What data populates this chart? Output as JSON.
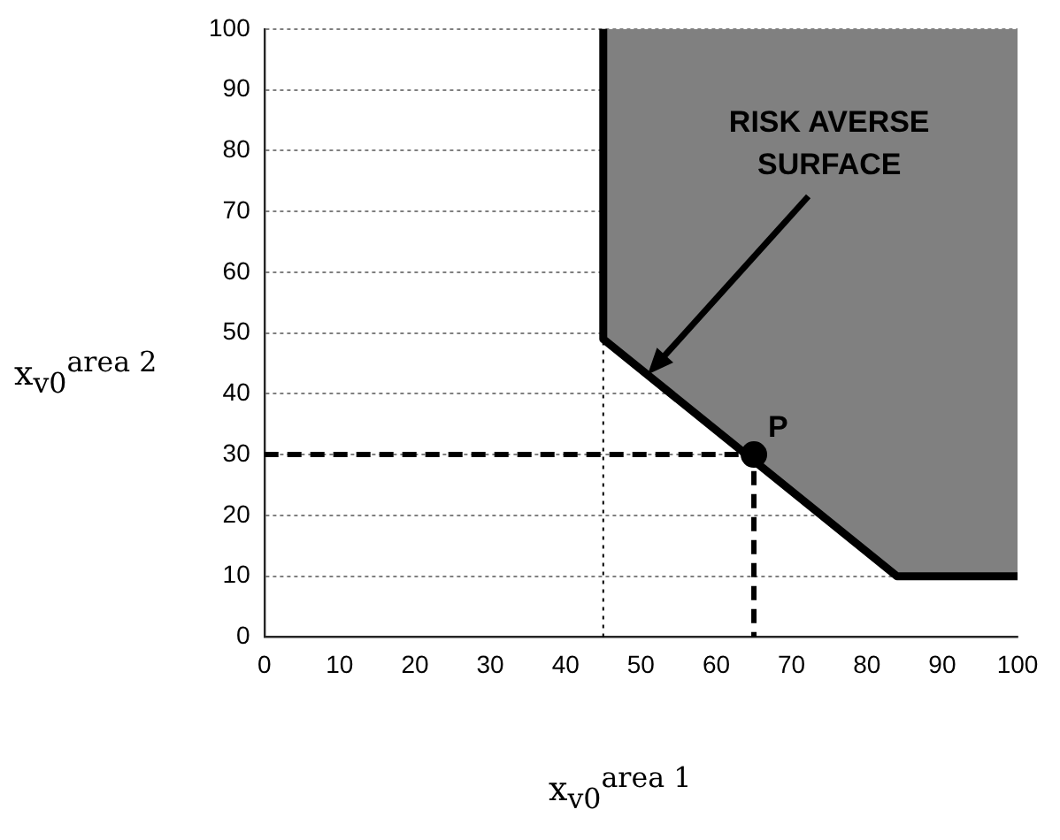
{
  "chart_data": {
    "type": "line",
    "xlabel": "x$_{v0}$$^{area 1}$",
    "ylabel": "x$_{v0}$$^{area 2}$",
    "xlim": [
      0,
      100
    ],
    "ylim": [
      0,
      100
    ],
    "xticks": [
      0,
      10,
      20,
      30,
      40,
      50,
      60,
      70,
      80,
      90,
      100
    ],
    "yticks": [
      0,
      10,
      20,
      30,
      40,
      50,
      60,
      70,
      80,
      90,
      100
    ],
    "grid": "y",
    "legend": false,
    "series": [
      {
        "type": "area",
        "color": "#808080",
        "x": [
          45,
          45,
          84,
          100,
          100
        ],
        "values": [
          100,
          49,
          10,
          10,
          100
        ]
      },
      {
        "color": "#000000",
        "x": [
          0,
          65,
          65
        ],
        "values": [
          30,
          30,
          0
        ],
        "marker": "none",
        "line_style": "dashed"
      },
      {
        "type": "scatter",
        "color": "#000000",
        "x": [
          65
        ],
        "values": [
          30
        ],
        "marker": "circle"
      }
    ],
    "ref_lines": [
      {
        "axis": "x",
        "value": 45,
        "color": "#000000",
        "line_style": "dotted"
      }
    ],
    "annotations": [
      "RISK AVERSE SURFACE",
      {
        "text": "P",
        "x": 65,
        "y": 30
      }
    ]
  }
}
